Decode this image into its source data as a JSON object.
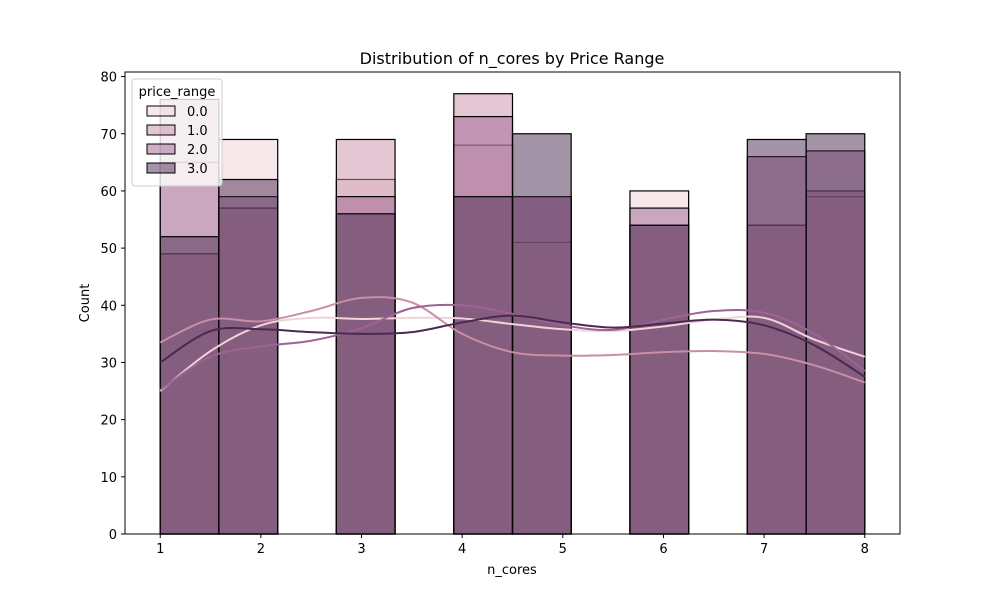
{
  "chart_data": {
    "type": "bar",
    "title": "Distribution of n_cores by Price Range",
    "xlabel": "n_cores",
    "ylabel": "Count",
    "xlim": [
      0.65,
      8.35
    ],
    "ylim": [
      0,
      80.8
    ],
    "xticks": [
      1,
      2,
      3,
      4,
      5,
      6,
      7,
      8
    ],
    "yticks": [
      0,
      10,
      20,
      30,
      40,
      50,
      60,
      70,
      80
    ],
    "bin_edges": [
      1.0,
      1.583,
      2.167,
      2.75,
      3.333,
      3.917,
      4.5,
      5.083,
      5.667,
      6.25,
      6.833,
      7.417,
      8.0
    ],
    "legend": {
      "title": "price_range",
      "placement": "top-left",
      "entries": [
        "0.0",
        "1.0",
        "2.0",
        "3.0"
      ]
    },
    "series": [
      {
        "name": "0.0",
        "color": "#f0d4d8",
        "counts": [
          65,
          69,
          0,
          62,
          0,
          68,
          51,
          0,
          60,
          0,
          54,
          59
        ],
        "kde": [
          25,
          32,
          36.5,
          37.8,
          37.6,
          37.8,
          37.7,
          36.7,
          35.8,
          35.5,
          36.3,
          37.5,
          37.8,
          34,
          31
        ]
      },
      {
        "name": "1.0",
        "color": "#c98fa5",
        "counts": [
          49,
          57,
          0,
          69,
          0,
          77,
          59,
          0,
          54,
          0,
          54,
          60
        ],
        "kde": [
          33.5,
          37.5,
          37.2,
          39,
          41.3,
          40.5,
          35,
          31.8,
          31.2,
          31.3,
          31.8,
          32,
          31.5,
          29.5,
          26.5
        ]
      },
      {
        "name": "2.0",
        "color": "#9e6394",
        "counts": [
          76,
          59,
          0,
          59,
          0,
          73,
          59,
          0,
          57,
          0,
          66,
          67
        ],
        "kde": [
          25.2,
          31,
          32.8,
          33.8,
          36,
          39.5,
          40,
          38.5,
          36.5,
          35.7,
          37.5,
          39,
          38.7,
          35,
          28.5
        ]
      },
      {
        "name": "3.0",
        "color": "#4a2a4f",
        "counts": [
          52,
          62,
          0,
          56,
          0,
          59,
          70,
          0,
          54,
          0,
          69,
          70
        ],
        "kde": [
          30,
          35.5,
          35.8,
          35.3,
          35,
          35.3,
          37,
          38.2,
          37,
          36.1,
          36.8,
          37.5,
          36.5,
          33,
          27.5
        ]
      }
    ],
    "kde_x": [
      1.0,
      1.5,
      2.0,
      2.5,
      3.0,
      3.5,
      4.0,
      4.5,
      5.0,
      5.5,
      6.0,
      6.5,
      7.0,
      7.5,
      8.0
    ]
  }
}
